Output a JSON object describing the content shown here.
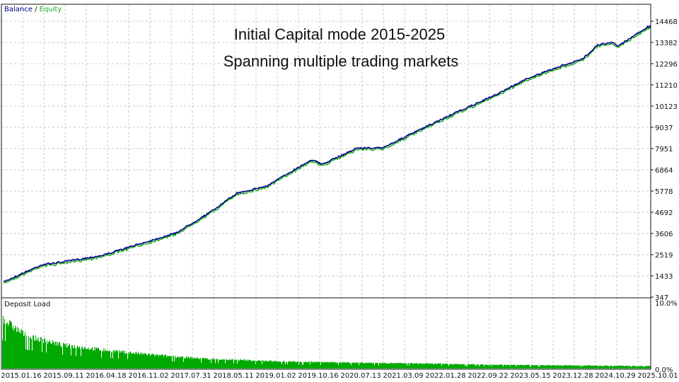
{
  "chart_data": [
    {
      "type": "line",
      "legend": {
        "balance_label": "Balance",
        "separator": " / ",
        "equity_label": "Equity",
        "placement": "top-left"
      },
      "annotations": [
        "Initial Capital mode 2015-2025",
        "Spanning multiple trading markets"
      ],
      "ylim": [
        347,
        14468
      ],
      "yticks": [
        "14468",
        "13382",
        "12296",
        "11210",
        "10123",
        "9037",
        "7951",
        "6864",
        "5778",
        "4692",
        "3606",
        "2519",
        "1433",
        "347"
      ],
      "grid": true,
      "colors": {
        "balance": "#00008b",
        "equity": "#1faa1f",
        "grid": "#c8c8c8"
      },
      "balance": [
        {
          "date": "2015.01",
          "value": 1081
        },
        {
          "date": "2015.09",
          "value": 1999
        },
        {
          "date": "2016.02",
          "value": 2182
        },
        {
          "date": "2016.09",
          "value": 2476
        },
        {
          "date": "2017.05",
          "value": 3100
        },
        {
          "date": "2017.12",
          "value": 3650
        },
        {
          "date": "2018.07",
          "value": 4751
        },
        {
          "date": "2018.12",
          "value": 5669
        },
        {
          "date": "2019.06",
          "value": 6036
        },
        {
          "date": "2019.12",
          "value": 6953
        },
        {
          "date": "2020.03",
          "value": 7393
        },
        {
          "date": "2020.05",
          "value": 7137
        },
        {
          "date": "2020.12",
          "value": 7980
        },
        {
          "date": "2021.05",
          "value": 7980
        },
        {
          "date": "2022.01",
          "value": 8972
        },
        {
          "date": "2022.07",
          "value": 9706
        },
        {
          "date": "2023.03",
          "value": 10623
        },
        {
          "date": "2023.10",
          "value": 11541
        },
        {
          "date": "2024.05",
          "value": 12201
        },
        {
          "date": "2024.09",
          "value": 12531
        },
        {
          "date": "2024.12",
          "value": 13265
        },
        {
          "date": "2025.03",
          "value": 13375
        },
        {
          "date": "2025.04",
          "value": 13192
        },
        {
          "date": "2025.10",
          "value": 14183
        }
      ]
    },
    {
      "type": "bar",
      "title": "Deposit Load",
      "ylim_labels": [
        "10.0%",
        "0.0%"
      ],
      "ylim": [
        0,
        10
      ],
      "color": "#00aa00",
      "envelope": [
        {
          "date": "2015.01",
          "value": 8.0
        },
        {
          "date": "2015.06",
          "value": 5.2
        },
        {
          "date": "2016.01",
          "value": 3.8
        },
        {
          "date": "2016.09",
          "value": 3.0
        },
        {
          "date": "2017.07",
          "value": 2.2
        },
        {
          "date": "2018.05",
          "value": 1.6
        },
        {
          "date": "2019.06",
          "value": 1.2
        },
        {
          "date": "2020.07",
          "value": 1.0
        },
        {
          "date": "2022.01",
          "value": 0.8
        },
        {
          "date": "2023.05",
          "value": 0.6
        },
        {
          "date": "2025.10",
          "value": 0.4
        }
      ]
    }
  ],
  "xticks": [
    "2015.01.16",
    "2015.09.11",
    "2016.04.18",
    "2016.11.02",
    "2017.07.31",
    "2018.05.11",
    "2019.01.02",
    "2019.10.16",
    "2020.07.13",
    "2021.03.09",
    "2022.01.28",
    "2022.09.22",
    "2023.05.15",
    "2023.12.28",
    "2024.10.29",
    "2025.10.01"
  ]
}
